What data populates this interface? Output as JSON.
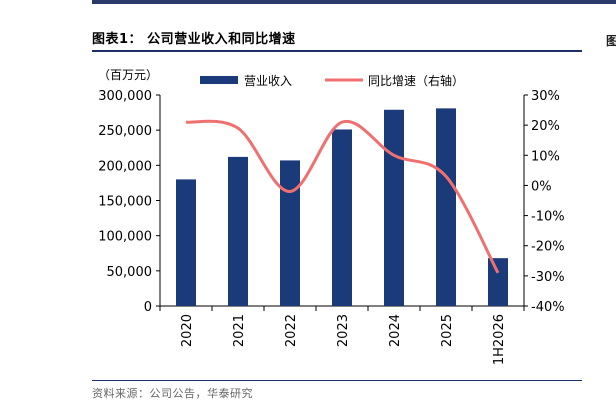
{
  "figure": {
    "title": "图表1：  公司营业收入和同比增速",
    "source": "资料来源：公司公告，华泰研究",
    "edge_glyph": "图"
  },
  "colors": {
    "bar": "#1b3a7a",
    "line": "#f07070",
    "rule": "#1f2f6a"
  },
  "chart_data": {
    "type": "bar",
    "categories": [
      "2020",
      "2021",
      "2022",
      "2023",
      "2024",
      "2025",
      "1H2026"
    ],
    "series": [
      {
        "name": "营业收入",
        "type": "bar",
        "axis": "left",
        "values": [
          180000,
          212000,
          207000,
          251000,
          279000,
          281000,
          68000
        ]
      },
      {
        "name": "同比增速（右轴）",
        "type": "line",
        "axis": "right",
        "values": [
          21,
          19,
          -2,
          21,
          10,
          3,
          -29
        ]
      }
    ],
    "y_left": {
      "unit": "（百万元）",
      "ylim": [
        0,
        300000
      ],
      "ticks": [
        "0",
        "50,000",
        "100,000",
        "150,000",
        "200,000",
        "250,000",
        "300,000"
      ]
    },
    "y_right": {
      "ylim": [
        -40,
        30
      ],
      "ticks": [
        "-40%",
        "-30%",
        "-20%",
        "-10%",
        "0%",
        "10%",
        "20%",
        "30%"
      ]
    },
    "legend_position": "top",
    "grid": false
  }
}
